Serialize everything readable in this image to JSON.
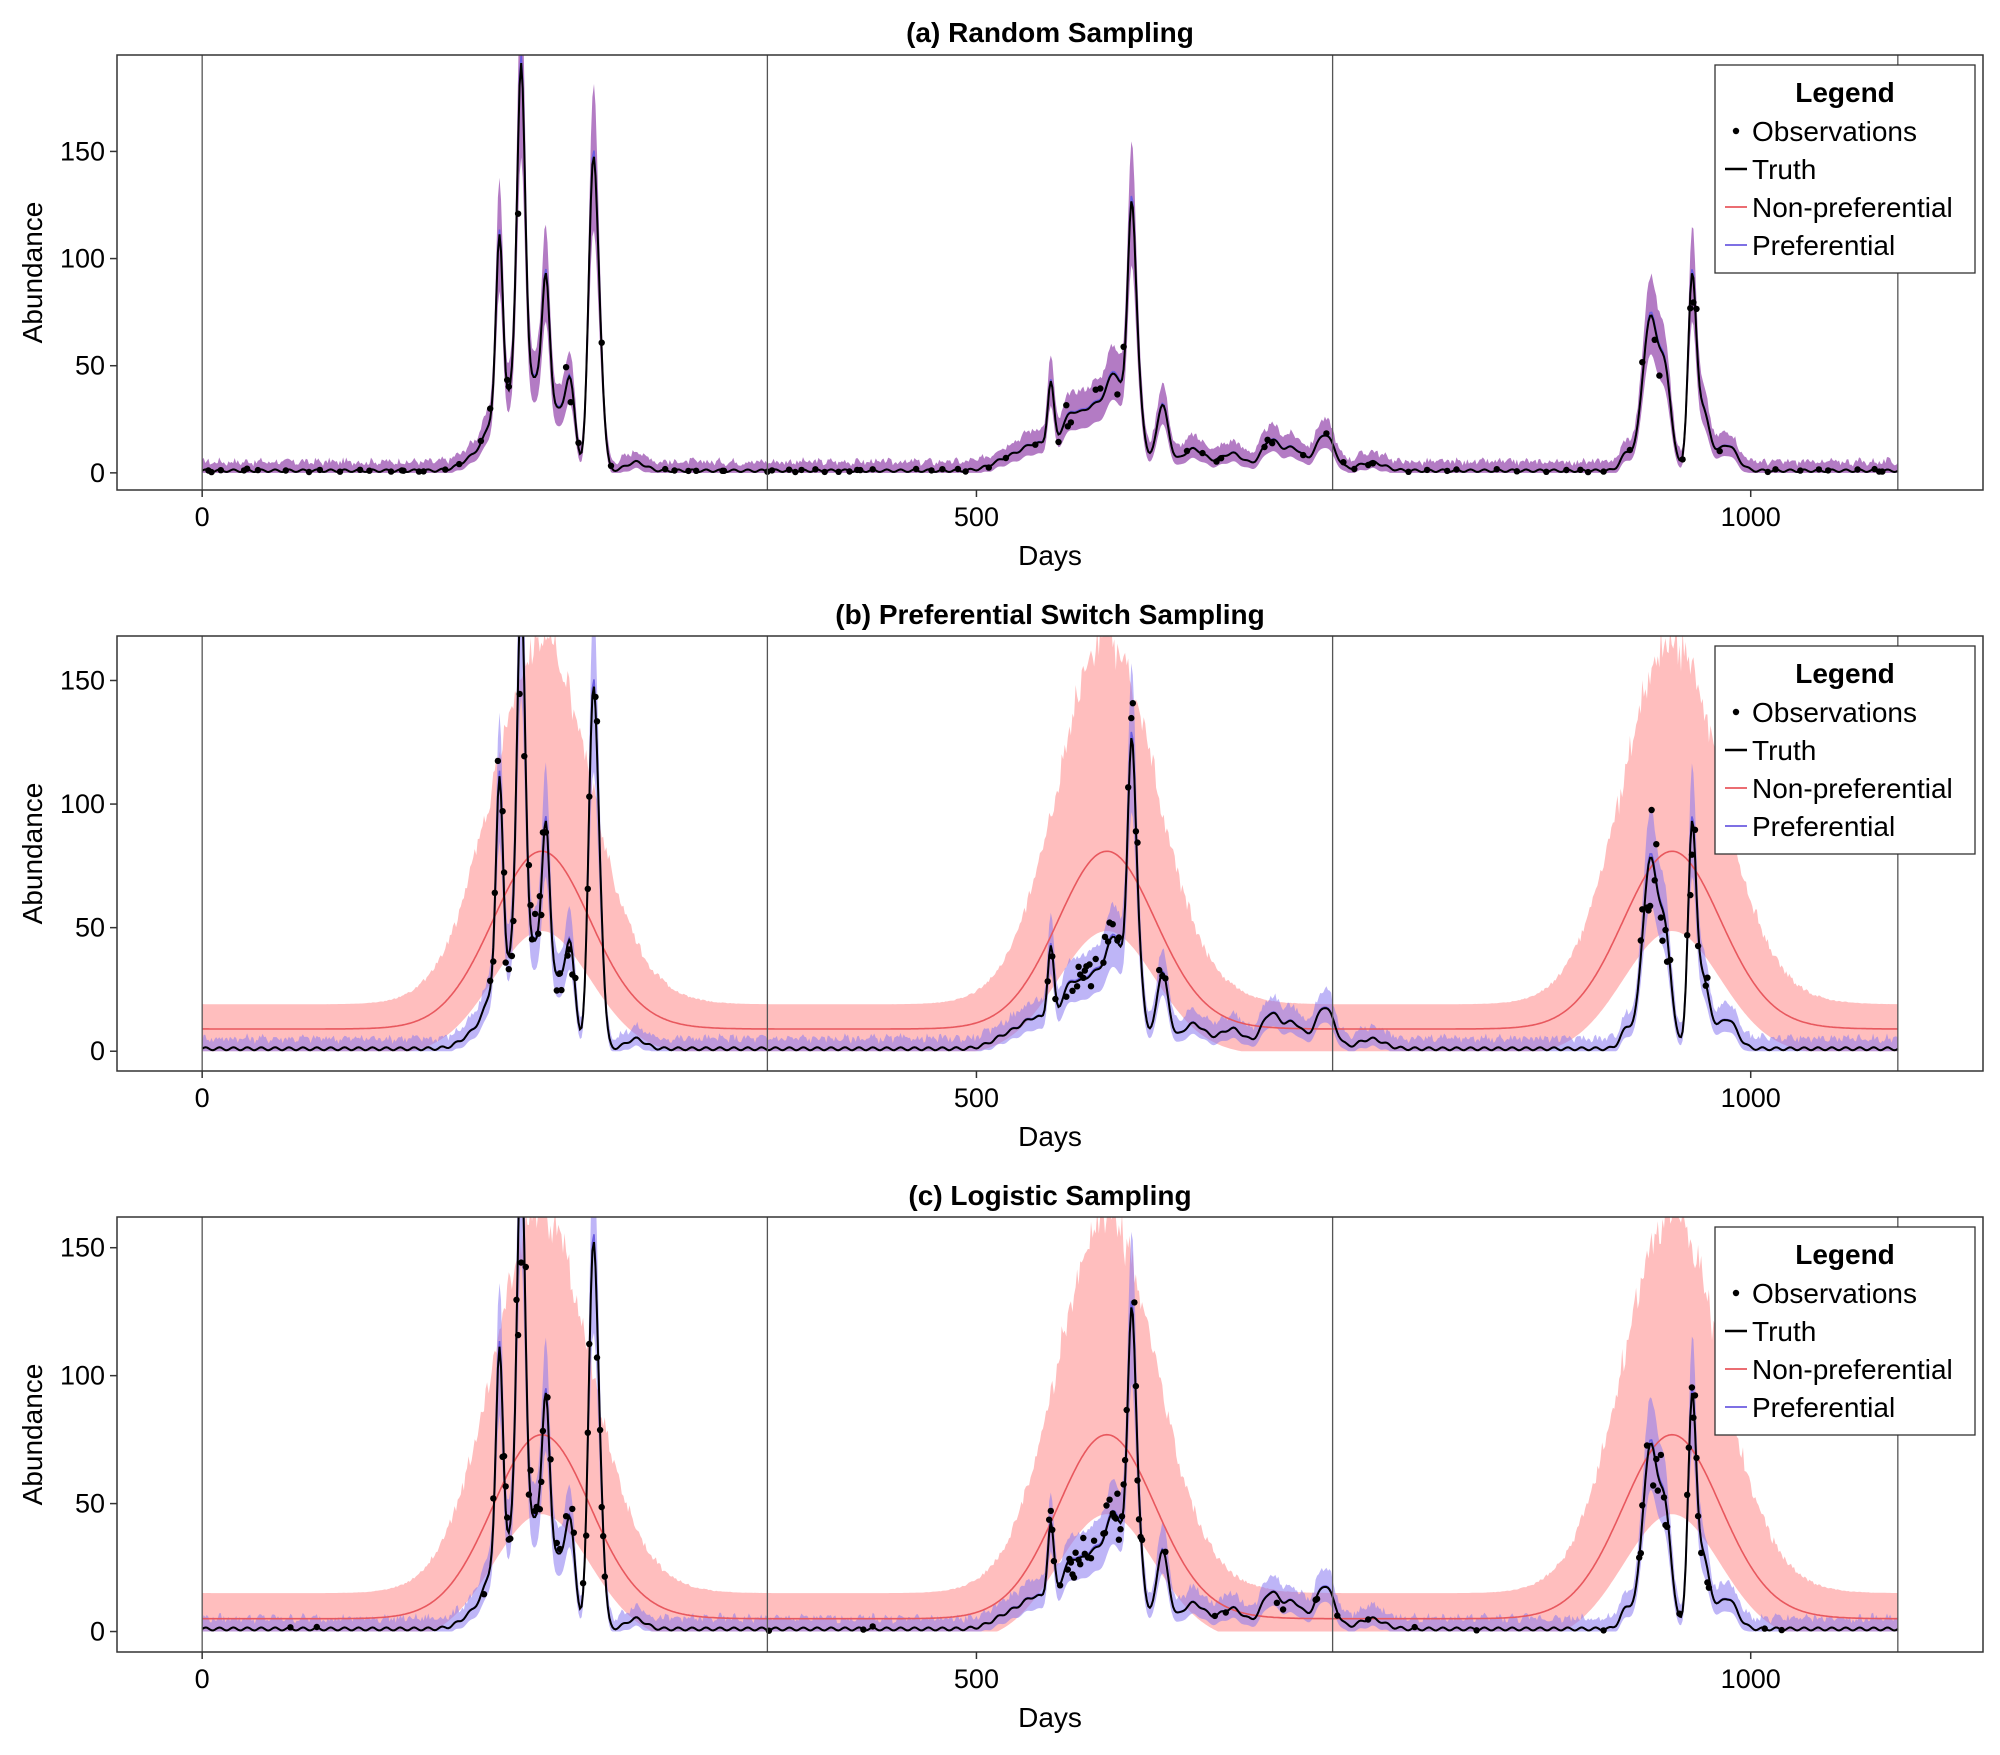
{
  "colors": {
    "truth": "#000000",
    "observations": "#000000",
    "nonpreferential_line": "#e8585e",
    "nonpreferential_band": "#ffb3b3",
    "preferential_line": "#6b5ce0",
    "preferential_band": "#8878f0",
    "overlap_band": "#9a4fb0",
    "vline": "#555555"
  },
  "legend": {
    "title": "Legend",
    "items": [
      {
        "key": "observations",
        "label": "Observations"
      },
      {
        "key": "truth",
        "label": "Truth"
      },
      {
        "key": "nonpreferential",
        "label": "Non-preferential"
      },
      {
        "key": "preferential",
        "label": "Preferential"
      }
    ]
  },
  "chart_data": [
    {
      "type": "line",
      "title": "(a) Random Sampling",
      "xlabel": "Days",
      "ylabel": "Abundance",
      "xlim": [
        -55,
        1150
      ],
      "ylim": [
        -8,
        195
      ],
      "xticks": [
        0,
        500,
        1000
      ],
      "yticks": [
        0,
        50,
        100,
        150
      ],
      "vlines": [
        365,
        730,
        1095
      ],
      "grid": false,
      "legend_position": "top-right",
      "scenario": "random",
      "truth_peaks": [
        {
          "day": 180,
          "height": 8,
          "width": 10
        },
        {
          "day": 190,
          "height": 20,
          "width": 6
        },
        {
          "day": 198,
          "height": 15,
          "width": 4
        },
        {
          "day": 192,
          "height": 82,
          "width": 2.2
        },
        {
          "day": 205,
          "height": 45,
          "width": 4
        },
        {
          "day": 206,
          "height": 136,
          "width": 2.5
        },
        {
          "day": 215,
          "height": 40,
          "width": 5
        },
        {
          "day": 222,
          "height": 70,
          "width": 2.5
        },
        {
          "day": 230,
          "height": 28,
          "width": 5
        },
        {
          "day": 238,
          "height": 35,
          "width": 3
        },
        {
          "day": 252,
          "height": 120,
          "width": 2.8
        },
        {
          "day": 256,
          "height": 55,
          "width": 3
        },
        {
          "day": 280,
          "height": 4,
          "width": 6
        },
        {
          "day": 520,
          "height": 5,
          "width": 10
        },
        {
          "day": 540,
          "height": 12,
          "width": 10
        },
        {
          "day": 548,
          "height": 30,
          "width": 2
        },
        {
          "day": 560,
          "height": 20,
          "width": 6
        },
        {
          "day": 575,
          "height": 28,
          "width": 8
        },
        {
          "day": 590,
          "height": 40,
          "width": 6
        },
        {
          "day": 600,
          "height": 82,
          "width": 2.5
        },
        {
          "day": 603,
          "height": 45,
          "width": 4
        },
        {
          "day": 620,
          "height": 30,
          "width": 4
        },
        {
          "day": 640,
          "height": 10,
          "width": 8
        },
        {
          "day": 665,
          "height": 8,
          "width": 8
        },
        {
          "day": 690,
          "height": 14,
          "width": 6
        },
        {
          "day": 705,
          "height": 10,
          "width": 6
        },
        {
          "day": 725,
          "height": 17,
          "width": 6
        },
        {
          "day": 755,
          "height": 4,
          "width": 8
        },
        {
          "day": 920,
          "height": 8,
          "width": 4
        },
        {
          "day": 935,
          "height": 70,
          "width": 5
        },
        {
          "day": 945,
          "height": 40,
          "width": 4
        },
        {
          "day": 962,
          "height": 77,
          "width": 2.5
        },
        {
          "day": 968,
          "height": 30,
          "width": 5
        },
        {
          "day": 985,
          "height": 12,
          "width": 6
        }
      ]
    },
    {
      "type": "line",
      "title": "(b) Preferential Switch Sampling",
      "xlabel": "Days",
      "ylabel": "Abundance",
      "xlim": [
        -55,
        1150
      ],
      "ylim": [
        -8,
        168
      ],
      "xticks": [
        0,
        500,
        1000
      ],
      "yticks": [
        0,
        50,
        100,
        150
      ],
      "vlines": [
        365,
        730,
        1095
      ],
      "grid": false,
      "legend_position": "top-right",
      "scenario": "switch",
      "truth_peaks": [
        {
          "day": 180,
          "height": 8,
          "width": 10
        },
        {
          "day": 190,
          "height": 20,
          "width": 6
        },
        {
          "day": 198,
          "height": 15,
          "width": 4
        },
        {
          "day": 192,
          "height": 82,
          "width": 2.2
        },
        {
          "day": 205,
          "height": 45,
          "width": 4
        },
        {
          "day": 206,
          "height": 132,
          "width": 2.5
        },
        {
          "day": 215,
          "height": 40,
          "width": 5
        },
        {
          "day": 222,
          "height": 70,
          "width": 2.5
        },
        {
          "day": 230,
          "height": 28,
          "width": 5
        },
        {
          "day": 238,
          "height": 35,
          "width": 3
        },
        {
          "day": 252,
          "height": 120,
          "width": 2.8
        },
        {
          "day": 256,
          "height": 55,
          "width": 3
        },
        {
          "day": 280,
          "height": 4,
          "width": 6
        },
        {
          "day": 520,
          "height": 5,
          "width": 10
        },
        {
          "day": 540,
          "height": 12,
          "width": 10
        },
        {
          "day": 548,
          "height": 30,
          "width": 2
        },
        {
          "day": 560,
          "height": 20,
          "width": 6
        },
        {
          "day": 575,
          "height": 28,
          "width": 8
        },
        {
          "day": 590,
          "height": 40,
          "width": 6
        },
        {
          "day": 600,
          "height": 82,
          "width": 2.5
        },
        {
          "day": 603,
          "height": 45,
          "width": 4
        },
        {
          "day": 620,
          "height": 30,
          "width": 4
        },
        {
          "day": 640,
          "height": 10,
          "width": 8
        },
        {
          "day": 665,
          "height": 8,
          "width": 8
        },
        {
          "day": 690,
          "height": 14,
          "width": 6
        },
        {
          "day": 705,
          "height": 10,
          "width": 6
        },
        {
          "day": 725,
          "height": 17,
          "width": 6
        },
        {
          "day": 755,
          "height": 4,
          "width": 8
        },
        {
          "day": 920,
          "height": 8,
          "width": 4
        },
        {
          "day": 935,
          "height": 75,
          "width": 5
        },
        {
          "day": 945,
          "height": 40,
          "width": 4
        },
        {
          "day": 962,
          "height": 77,
          "width": 2.5
        },
        {
          "day": 968,
          "height": 30,
          "width": 5
        },
        {
          "day": 985,
          "height": 12,
          "width": 6
        }
      ]
    },
    {
      "type": "line",
      "title": "(c) Logistic Sampling",
      "xlabel": "Days",
      "ylabel": "Abundance",
      "xlim": [
        -55,
        1150
      ],
      "ylim": [
        -8,
        162
      ],
      "xticks": [
        0,
        500,
        1000
      ],
      "yticks": [
        0,
        50,
        100,
        150
      ],
      "vlines": [
        365,
        730,
        1095
      ],
      "grid": false,
      "legend_position": "top-right",
      "scenario": "logistic",
      "truth_peaks": [
        {
          "day": 180,
          "height": 8,
          "width": 10
        },
        {
          "day": 190,
          "height": 20,
          "width": 6
        },
        {
          "day": 198,
          "height": 15,
          "width": 4
        },
        {
          "day": 192,
          "height": 82,
          "width": 2.2
        },
        {
          "day": 205,
          "height": 45,
          "width": 4
        },
        {
          "day": 206,
          "height": 135,
          "width": 2.5
        },
        {
          "day": 215,
          "height": 40,
          "width": 5
        },
        {
          "day": 222,
          "height": 70,
          "width": 2.5
        },
        {
          "day": 230,
          "height": 28,
          "width": 5
        },
        {
          "day": 238,
          "height": 35,
          "width": 3
        },
        {
          "day": 252,
          "height": 125,
          "width": 2.8
        },
        {
          "day": 256,
          "height": 55,
          "width": 3
        },
        {
          "day": 280,
          "height": 4,
          "width": 6
        },
        {
          "day": 520,
          "height": 5,
          "width": 10
        },
        {
          "day": 540,
          "height": 12,
          "width": 10
        },
        {
          "day": 548,
          "height": 30,
          "width": 2
        },
        {
          "day": 560,
          "height": 20,
          "width": 6
        },
        {
          "day": 575,
          "height": 28,
          "width": 8
        },
        {
          "day": 590,
          "height": 40,
          "width": 6
        },
        {
          "day": 600,
          "height": 82,
          "width": 2.5
        },
        {
          "day": 603,
          "height": 45,
          "width": 4
        },
        {
          "day": 620,
          "height": 30,
          "width": 4
        },
        {
          "day": 640,
          "height": 10,
          "width": 8
        },
        {
          "day": 665,
          "height": 8,
          "width": 8
        },
        {
          "day": 690,
          "height": 14,
          "width": 6
        },
        {
          "day": 705,
          "height": 10,
          "width": 6
        },
        {
          "day": 725,
          "height": 17,
          "width": 6
        },
        {
          "day": 755,
          "height": 4,
          "width": 8
        },
        {
          "day": 920,
          "height": 8,
          "width": 4
        },
        {
          "day": 935,
          "height": 70,
          "width": 5
        },
        {
          "day": 945,
          "height": 40,
          "width": 4
        },
        {
          "day": 962,
          "height": 77,
          "width": 2.5
        },
        {
          "day": 968,
          "height": 30,
          "width": 5
        },
        {
          "day": 985,
          "height": 12,
          "width": 6
        }
      ]
    }
  ]
}
